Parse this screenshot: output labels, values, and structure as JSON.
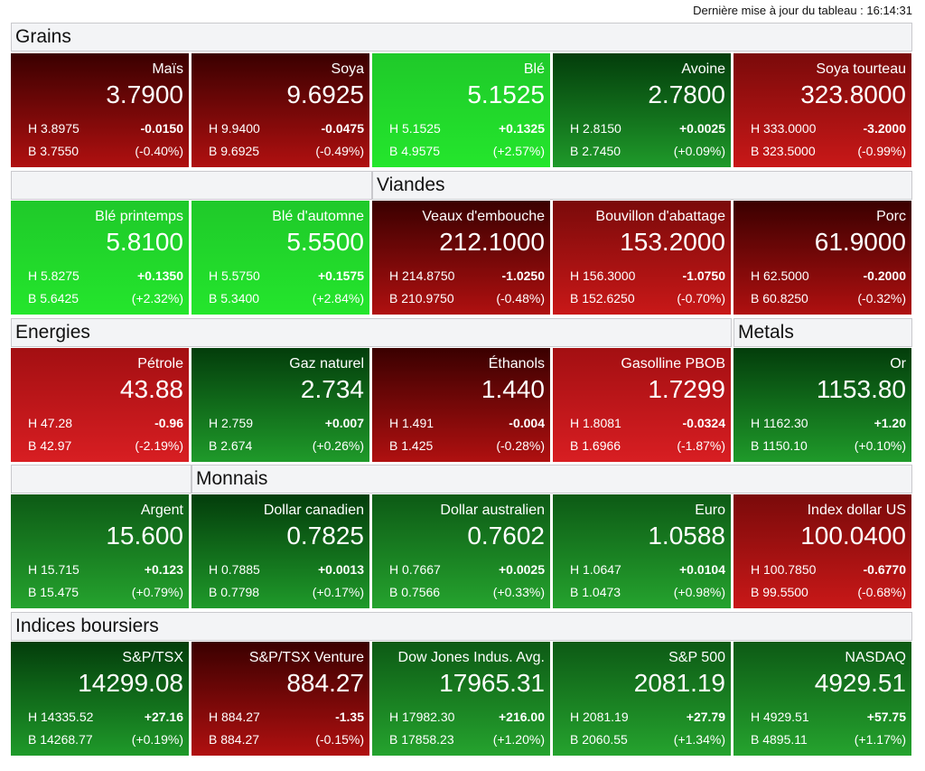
{
  "updated_text": "Dernière mise à jour du tableau : 16:14:31",
  "sections": [
    {
      "label": "Grains"
    },
    {
      "label": "Viandes"
    },
    {
      "label": "Energies"
    },
    {
      "label": "Metals"
    },
    {
      "label": "Monnais"
    },
    {
      "label": "Indices boursiers"
    }
  ],
  "tiles": [
    {
      "name": "Maïs",
      "price": "3.7900",
      "high": "H 3.8975",
      "low": "B 3.7550",
      "change": "-0.0150",
      "pct": "(-0.40%)",
      "tone": "down-dark"
    },
    {
      "name": "Soya",
      "price": "9.6925",
      "high": "H 9.9400",
      "low": "B 9.6925",
      "change": "-0.0475",
      "pct": "(-0.49%)",
      "tone": "down-dark"
    },
    {
      "name": "Blé",
      "price": "5.1525",
      "high": "H 5.1525",
      "low": "B 4.9575",
      "change": "+0.1325",
      "pct": "(+2.57%)",
      "tone": "up-bright"
    },
    {
      "name": "Avoine",
      "price": "2.7800",
      "high": "H 2.8150",
      "low": "B 2.7450",
      "change": "+0.0025",
      "pct": "(+0.09%)",
      "tone": "up-dark"
    },
    {
      "name": "Soya tourteau",
      "price": "323.8000",
      "high": "H 333.0000",
      "low": "B 323.5000",
      "change": "-3.2000",
      "pct": "(-0.99%)",
      "tone": "down-mid"
    },
    {
      "name": "Blé printemps",
      "price": "5.8100",
      "high": "H 5.8275",
      "low": "B 5.6425",
      "change": "+0.1350",
      "pct": "(+2.32%)",
      "tone": "up-bright"
    },
    {
      "name": "Blé d'automne",
      "price": "5.5500",
      "high": "H 5.5750",
      "low": "B 5.3400",
      "change": "+0.1575",
      "pct": "(+2.84%)",
      "tone": "up-bright"
    },
    {
      "name": "Veaux d'embouche",
      "price": "212.1000",
      "high": "H 214.8750",
      "low": "B 210.9750",
      "change": "-1.0250",
      "pct": "(-0.48%)",
      "tone": "down-dark"
    },
    {
      "name": "Bouvillon d'abattage",
      "price": "153.2000",
      "high": "H 156.3000",
      "low": "B 152.6250",
      "change": "-1.0750",
      "pct": "(-0.70%)",
      "tone": "down-mid"
    },
    {
      "name": "Porc",
      "price": "61.9000",
      "high": "H 62.5000",
      "low": "B 60.8250",
      "change": "-0.2000",
      "pct": "(-0.32%)",
      "tone": "down-dark"
    },
    {
      "name": "Pétrole",
      "price": "43.88",
      "high": "H 47.28",
      "low": "B 42.97",
      "change": "-0.96",
      "pct": "(-2.19%)",
      "tone": "down-bright"
    },
    {
      "name": "Gaz naturel",
      "price": "2.734",
      "high": "H 2.759",
      "low": "B 2.674",
      "change": "+0.007",
      "pct": "(+0.26%)",
      "tone": "up-dark"
    },
    {
      "name": "Éthanols",
      "price": "1.440",
      "high": "H 1.491",
      "low": "B 1.425",
      "change": "-0.004",
      "pct": "(-0.28%)",
      "tone": "down-dark"
    },
    {
      "name": "Gasolline PBOB",
      "price": "1.7299",
      "high": "H 1.8081",
      "low": "B 1.6966",
      "change": "-0.0324",
      "pct": "(-1.87%)",
      "tone": "down-bright"
    },
    {
      "name": "Or",
      "price": "1153.80",
      "high": "H 1162.30",
      "low": "B 1150.10",
      "change": "+1.20",
      "pct": "(+0.10%)",
      "tone": "up-dark"
    },
    {
      "name": "Argent",
      "price": "15.600",
      "high": "H 15.715",
      "low": "B 15.475",
      "change": "+0.123",
      "pct": "(+0.79%)",
      "tone": "up-mid"
    },
    {
      "name": "Dollar canadien",
      "price": "0.7825",
      "high": "H 0.7885",
      "low": "B 0.7798",
      "change": "+0.0013",
      "pct": "(+0.17%)",
      "tone": "up-dark"
    },
    {
      "name": "Dollar australien",
      "price": "0.7602",
      "high": "H 0.7667",
      "low": "B 0.7566",
      "change": "+0.0025",
      "pct": "(+0.33%)",
      "tone": "up-mid"
    },
    {
      "name": "Euro",
      "price": "1.0588",
      "high": "H 1.0647",
      "low": "B 1.0473",
      "change": "+0.0104",
      "pct": "(+0.98%)",
      "tone": "up-mid"
    },
    {
      "name": "Index dollar US",
      "price": "100.0400",
      "high": "H 100.7850",
      "low": "B 99.5500",
      "change": "-0.6770",
      "pct": "(-0.68%)",
      "tone": "down-mid"
    },
    {
      "name": "S&P/TSX",
      "price": "14299.08",
      "high": "H 14335.52",
      "low": "B 14268.77",
      "change": "+27.16",
      "pct": "(+0.19%)",
      "tone": "up-dark"
    },
    {
      "name": "S&P/TSX Venture",
      "price": "884.27",
      "high": "H 884.27",
      "low": "B 884.27",
      "change": "-1.35",
      "pct": "(-0.15%)",
      "tone": "down-dark"
    },
    {
      "name": "Dow Jones Indus. Avg.",
      "price": "17965.31",
      "high": "H 17982.30",
      "low": "B 17858.23",
      "change": "+216.00",
      "pct": "(+1.20%)",
      "tone": "up-mid"
    },
    {
      "name": "S&P 500",
      "price": "2081.19",
      "high": "H 2081.19",
      "low": "B 2060.55",
      "change": "+27.79",
      "pct": "(+1.34%)",
      "tone": "up-mid"
    },
    {
      "name": "NASDAQ",
      "price": "4929.51",
      "high": "H 4929.51",
      "low": "B 4895.11",
      "change": "+57.75",
      "pct": "(+1.17%)",
      "tone": "up-mid"
    }
  ]
}
